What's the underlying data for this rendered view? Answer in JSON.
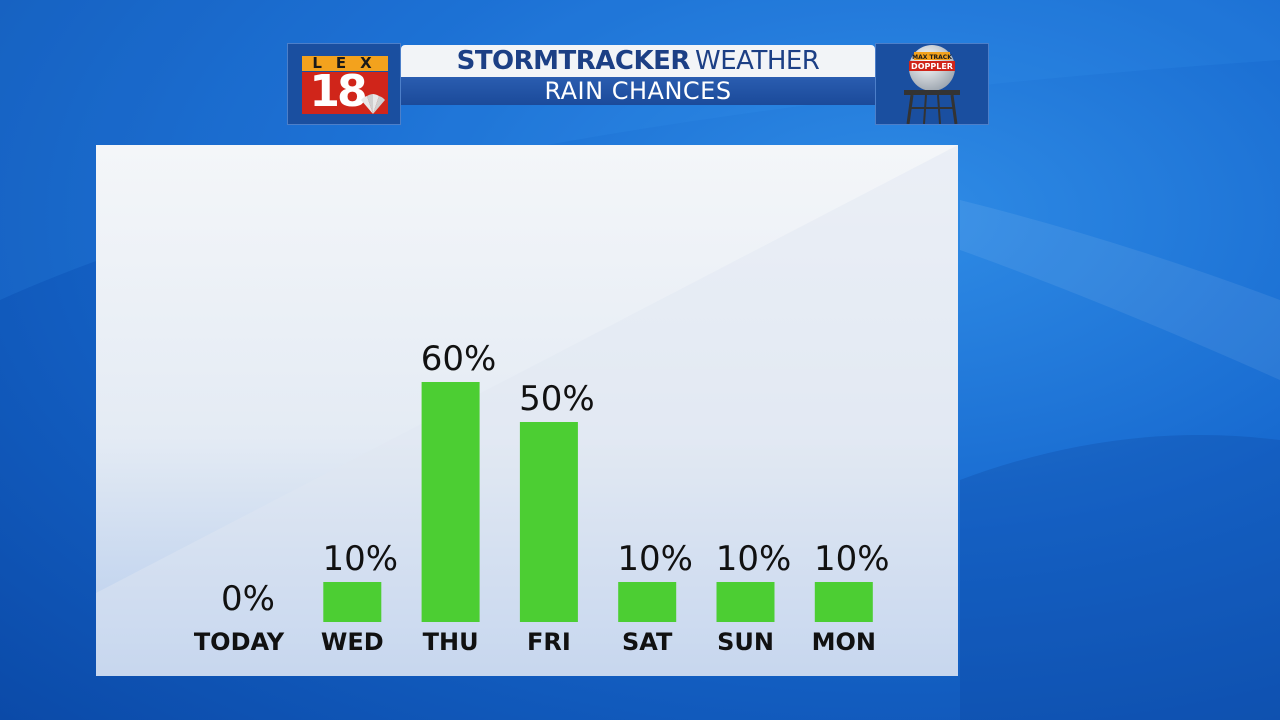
{
  "header": {
    "logo": {
      "letters": "LEX",
      "number": "18"
    },
    "title_bold": "STORMTRACKER",
    "title_regular": "WEATHER",
    "subtitle": "RAIN CHANCES",
    "doppler_badge": {
      "top_text": "MAX TRACK",
      "main_text": "DOPPLER"
    }
  },
  "colors": {
    "bar": "#4cce33",
    "title_text": "#1c3f85",
    "subtitle_band": "#1b4a9a",
    "logo_red": "#d0251a",
    "logo_orange": "#f3a21d"
  },
  "chart_data": {
    "type": "bar",
    "categories": [
      "TODAY",
      "WED",
      "THU",
      "FRI",
      "SAT",
      "SUN",
      "MON"
    ],
    "values": [
      0,
      10,
      60,
      50,
      10,
      10,
      10
    ],
    "labels": [
      "0%",
      "10%",
      "60%",
      "50%",
      "10%",
      "10%",
      "10%"
    ],
    "title": "RAIN CHANCES",
    "ylim": [
      0,
      100
    ],
    "grid": false,
    "legend": "none"
  }
}
